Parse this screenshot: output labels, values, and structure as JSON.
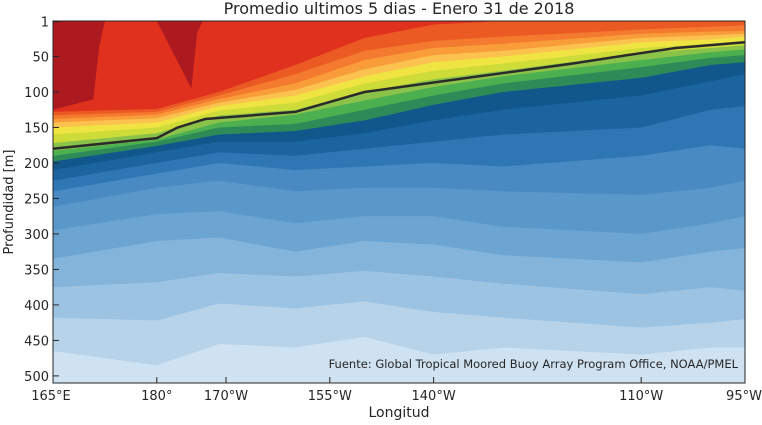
{
  "chart_data": {
    "type": "contour",
    "title": "Promedio ultimos 5 dias - Enero 31 de 2018",
    "xlabel": "Longitud",
    "ylabel": "Profundidad [m]",
    "annotation": "Fuente: Global Tropical Moored Buoy Array Program Office, NOAA/PMEL",
    "x_range_deg_east": [
      165,
      265
    ],
    "y_range_m": [
      0,
      510
    ],
    "y_reversed": true,
    "grid": false,
    "x_ticks": [
      {
        "value": 165,
        "label": "165°E"
      },
      {
        "value": 180,
        "label": "180°"
      },
      {
        "value": 190,
        "label": "170°W"
      },
      {
        "value": 205,
        "label": "155°W"
      },
      {
        "value": 220,
        "label": "140°W"
      },
      {
        "value": 250,
        "label": "110°W"
      },
      {
        "value": 265,
        "label": "95°W"
      }
    ],
    "y_ticks": [
      {
        "value": 1,
        "label": "1"
      },
      {
        "value": 50,
        "label": "50"
      },
      {
        "value": 100,
        "label": "100"
      },
      {
        "value": 150,
        "label": "150"
      },
      {
        "value": 200,
        "label": "200"
      },
      {
        "value": 250,
        "label": "250"
      },
      {
        "value": 300,
        "label": "300"
      },
      {
        "value": 350,
        "label": "350"
      },
      {
        "value": 400,
        "label": "400"
      },
      {
        "value": 450,
        "label": "450"
      },
      {
        "value": 500,
        "label": "500"
      }
    ],
    "thermocline_line": {
      "color": "#2b2b2b",
      "points": [
        [
          165,
          180
        ],
        [
          180,
          165
        ],
        [
          183,
          150
        ],
        [
          187,
          138
        ],
        [
          200,
          128
        ],
        [
          210,
          100
        ],
        [
          225,
          80
        ],
        [
          240,
          60
        ],
        [
          248,
          48
        ],
        [
          255,
          38
        ],
        [
          265,
          30
        ]
      ]
    },
    "level_colors": [
      "#cfe2f1",
      "#b7d3ea",
      "#9dc3e3",
      "#85b4da",
      "#6ca5d2",
      "#5a98ca",
      "#4a8ac2",
      "#2f77b4",
      "#1b64a0",
      "#11578c",
      "#2e8b57",
      "#4caf50",
      "#8bc34a",
      "#cddc39",
      "#f0e442",
      "#fbc24f",
      "#f99d3b",
      "#f37a2e",
      "#ec5a24",
      "#e0301e",
      "#c81d1d",
      "#ac1a1f"
    ],
    "contour_boundaries_depth_m": [
      {
        "x": [
          165,
          180,
          189,
          200,
          210,
          220,
          230,
          250,
          260,
          265
        ],
        "y": [
          465,
          485,
          455,
          460,
          445,
          470,
          460,
          470,
          460,
          460
        ]
      },
      {
        "x": [
          165,
          180,
          189,
          200,
          210,
          220,
          230,
          250,
          260,
          265
        ],
        "y": [
          418,
          422,
          398,
          405,
          395,
          410,
          418,
          432,
          425,
          420
        ]
      },
      {
        "x": [
          165,
          180,
          189,
          200,
          210,
          220,
          230,
          250,
          260,
          265
        ],
        "y": [
          375,
          368,
          355,
          360,
          352,
          360,
          370,
          385,
          375,
          380
        ]
      },
      {
        "x": [
          165,
          180,
          189,
          200,
          210,
          220,
          230,
          250,
          260,
          265
        ],
        "y": [
          335,
          310,
          305,
          325,
          310,
          315,
          330,
          340,
          325,
          320
        ]
      },
      {
        "x": [
          165,
          180,
          189,
          200,
          210,
          220,
          230,
          250,
          260,
          265
        ],
        "y": [
          295,
          272,
          268,
          285,
          275,
          275,
          290,
          300,
          285,
          275
        ]
      },
      {
        "x": [
          165,
          180,
          189,
          200,
          210,
          220,
          230,
          250,
          260,
          265
        ],
        "y": [
          262,
          235,
          225,
          240,
          235,
          235,
          240,
          245,
          235,
          225
        ]
      },
      {
        "x": [
          165,
          180,
          189,
          200,
          210,
          220,
          230,
          250,
          260,
          265
        ],
        "y": [
          240,
          215,
          200,
          210,
          205,
          200,
          205,
          190,
          175,
          180
        ]
      },
      {
        "x": [
          165,
          180,
          189,
          200,
          210,
          220,
          230,
          250,
          260,
          265
        ],
        "y": [
          225,
          200,
          185,
          190,
          180,
          170,
          160,
          150,
          125,
          120
        ]
      },
      {
        "x": [
          165,
          180,
          189,
          200,
          210,
          220,
          230,
          250,
          260,
          265
        ],
        "y": [
          210,
          185,
          170,
          170,
          158,
          140,
          125,
          105,
          85,
          75
        ]
      },
      {
        "x": [
          165,
          180,
          189,
          200,
          210,
          220,
          230,
          250,
          260,
          265
        ],
        "y": [
          198,
          176,
          160,
          155,
          140,
          118,
          100,
          80,
          62,
          58
        ]
      },
      {
        "x": [
          165,
          180,
          189,
          200,
          210,
          220,
          230,
          250,
          260,
          265
        ],
        "y": [
          190,
          170,
          150,
          145,
          125,
          105,
          88,
          65,
          52,
          48
        ]
      },
      {
        "x": [
          165,
          180,
          189,
          200,
          210,
          220,
          230,
          250,
          260,
          265
        ],
        "y": [
          183,
          167,
          143,
          132,
          112,
          93,
          78,
          55,
          44,
          40
        ]
      },
      {
        "x": [
          165,
          180,
          189,
          200,
          210,
          220,
          230,
          250,
          260,
          265
        ],
        "y": [
          172,
          158,
          133,
          125,
          100,
          82,
          70,
          45,
          38,
          34
        ]
      },
      {
        "x": [
          165,
          180,
          189,
          200,
          210,
          220,
          230,
          250,
          260,
          265
        ],
        "y": [
          160,
          150,
          126,
          115,
          88,
          70,
          60,
          38,
          32,
          28
        ]
      },
      {
        "x": [
          165,
          180,
          189,
          200,
          210,
          220,
          230,
          250,
          260,
          265
        ],
        "y": [
          150,
          143,
          120,
          105,
          78,
          58,
          50,
          30,
          26,
          22
        ]
      },
      {
        "x": [
          165,
          180,
          189,
          200,
          210,
          220,
          230,
          250,
          260,
          265
        ],
        "y": [
          143,
          137,
          115,
          97,
          68,
          48,
          42,
          24,
          20,
          18
        ]
      },
      {
        "x": [
          165,
          180,
          189,
          200,
          210,
          220,
          230,
          250,
          260,
          265
        ],
        "y": [
          138,
          132,
          110,
          88,
          55,
          38,
          32,
          18,
          15,
          14
        ]
      },
      {
        "x": [
          165,
          180,
          189,
          200,
          210,
          220,
          230,
          250,
          260,
          265
        ],
        "y": [
          133,
          128,
          105,
          75,
          42,
          28,
          22,
          12,
          8,
          6
        ]
      },
      {
        "x": [
          165,
          180,
          189,
          200,
          210,
          220,
          230,
          250,
          260,
          265
        ],
        "y": [
          128,
          124,
          100,
          62,
          24,
          5,
          0,
          0,
          0,
          0
        ]
      },
      {
        "x": [
          165,
          171,
          180,
          186,
          189,
          200,
          210,
          220,
          230,
          250,
          260,
          265
        ],
        "y": [
          0,
          0,
          0,
          0,
          0,
          0,
          0,
          0,
          0,
          0,
          0,
          0
        ]
      },
      {
        "x": [
          165,
          171,
          172,
          180,
          185,
          186,
          189,
          200,
          210,
          220,
          230,
          250,
          260,
          265
        ],
        "y": [
          125,
          110,
          0,
          0,
          95,
          0,
          0,
          0,
          0,
          0,
          0,
          0,
          0,
          0
        ]
      }
    ]
  }
}
